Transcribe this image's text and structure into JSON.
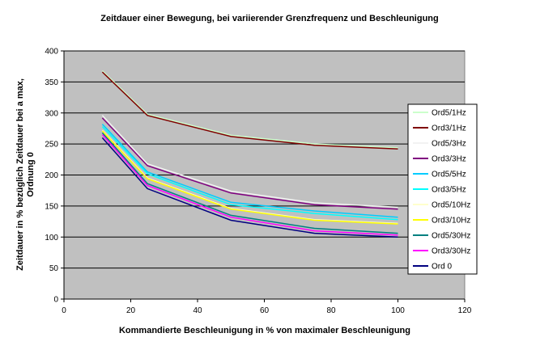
{
  "chart_data": {
    "type": "line",
    "title": "Zeitdauer einer Bewegung, bei variierender Grenzfrequenz und Beschleunigung",
    "xlabel": "Kommandierte Beschleunigung in % von maximaler Beschleunigung",
    "ylabel_lines": [
      "Zeitdauer in % bezüglich Zeitdauer bei a max,",
      "Ordnung 0"
    ],
    "xlim": [
      0,
      120
    ],
    "ylim": [
      0,
      400
    ],
    "x_ticks": [
      "0",
      "20",
      "40",
      "60",
      "80",
      "100",
      "120"
    ],
    "y_ticks": [
      "0",
      "50",
      "100",
      "150",
      "200",
      "250",
      "300",
      "350",
      "400"
    ],
    "grid": "horizontal",
    "legend_position": "right",
    "plot_background": "#c0c0c0",
    "x": [
      11.5,
      25,
      50,
      75,
      100
    ],
    "series": [
      {
        "name": "Ord5/1Hz",
        "color": "#ccffcc",
        "values": [
          368,
          298,
          264,
          250,
          244
        ]
      },
      {
        "name": "Ord3/1Hz",
        "color": "#800000",
        "values": [
          366,
          296,
          262,
          248,
          242
        ]
      },
      {
        "name": "Ord5/3Hz",
        "color": "#f2f2f2",
        "values": [
          296,
          218,
          174,
          155,
          148
        ]
      },
      {
        "name": "Ord3/3Hz",
        "color": "#800080",
        "values": [
          292,
          215,
          171,
          152,
          145
        ]
      },
      {
        "name": "Ord5/5Hz",
        "color": "#00ccff",
        "values": [
          282,
          205,
          156,
          142,
          132
        ]
      },
      {
        "name": "Ord3/5Hz",
        "color": "#00ffff",
        "values": [
          278,
          202,
          152,
          138,
          128
        ]
      },
      {
        "name": "Ord5/10Hz",
        "color": "#ffffcc",
        "values": [
          272,
          195,
          146,
          128,
          122
        ]
      },
      {
        "name": "Ord3/10Hz",
        "color": "#ffff00",
        "values": [
          271,
          194,
          145,
          127,
          121
        ]
      },
      {
        "name": "Ord5/30Hz",
        "color": "#008080",
        "values": [
          268,
          186,
          135,
          114,
          106
        ]
      },
      {
        "name": "Ord3/30Hz",
        "color": "#ff00ff",
        "values": [
          265,
          183,
          132,
          110,
          103
        ]
      },
      {
        "name": "Ord 0",
        "color": "#000080",
        "values": [
          260,
          178,
          127,
          106,
          100
        ]
      }
    ]
  }
}
